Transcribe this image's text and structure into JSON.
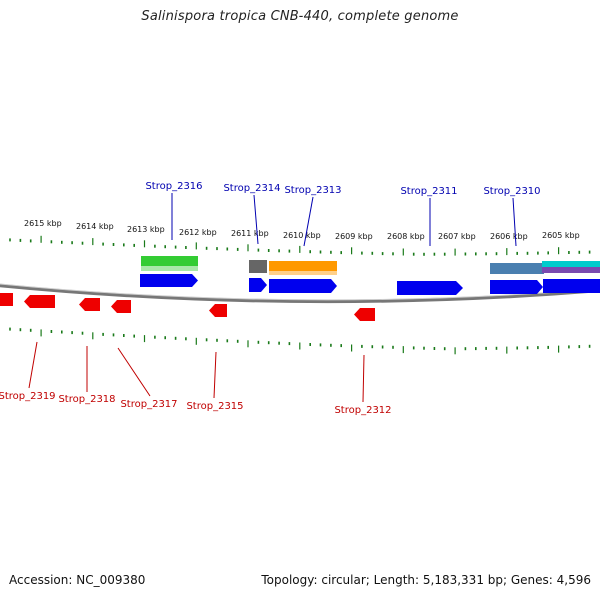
{
  "title": "Salinispora tropica CNB-440, complete genome",
  "accession": "Accession: NC_009380",
  "stats": "Topology: circular; Length: 5,183,331 bp; Genes: 4,596",
  "kbp_labels": [
    "2615 kbp",
    "2614 kbp",
    "2613 kbp",
    "2612 kbp",
    "2611 kbp",
    "2610 kbp",
    "2609 kbp",
    "2608 kbp",
    "2607 kbp",
    "2606 kbp",
    "2605 kbp"
  ],
  "top_genes": [
    "Strop_2316",
    "Strop_2314",
    "Strop_2313",
    "Strop_2311",
    "Strop_2310"
  ],
  "bottom_genes": [
    "Strop_2319",
    "Strop_2318",
    "Strop_2317",
    "Strop_2315",
    "Strop_2312"
  ],
  "colors": {
    "forward_gene": "#0000ee",
    "reverse_gene": "#ee0000",
    "tick": "#1a7a1a",
    "backbone": "#777777",
    "feature_green": "#33cc33",
    "feature_gray": "#666666",
    "feature_orange": "#ff9900",
    "feature_steelblue": "#4a7fb0",
    "feature_cyan": "#00cccc",
    "feature_violet": "#7a4ab0"
  }
}
